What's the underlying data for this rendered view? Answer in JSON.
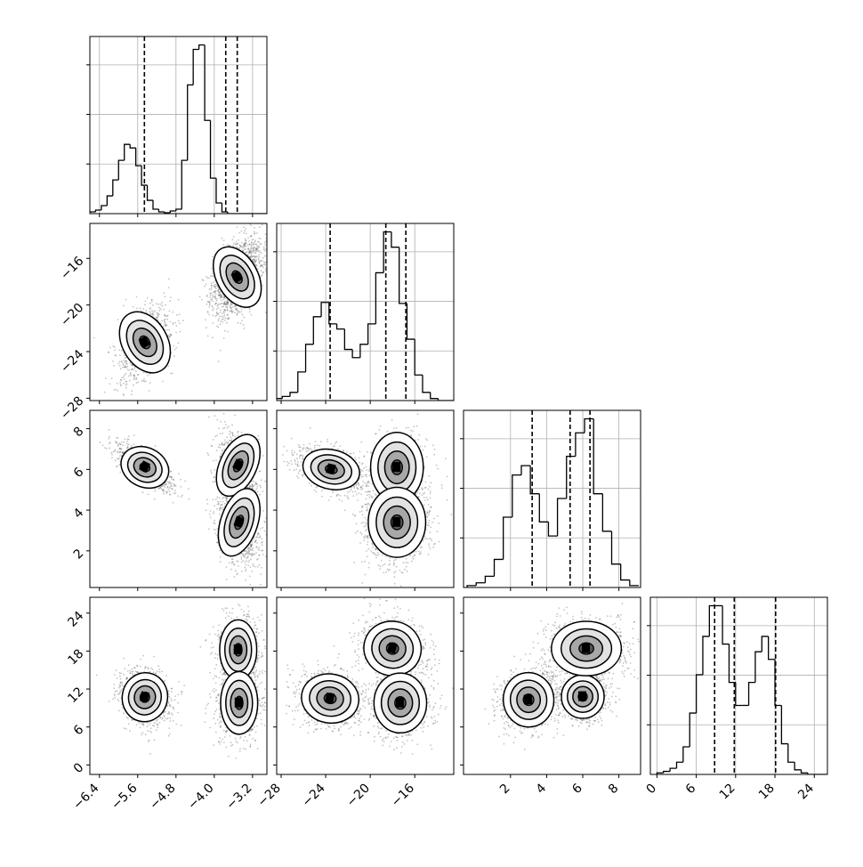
{
  "figure": {
    "kind": "corner-plot",
    "parameters": 4
  },
  "colors": {
    "hist_line": "#000000",
    "grid": "#b0b0b0",
    "scatter": "#555555",
    "contour": "#000000",
    "quantile_line": "#000000",
    "background": "#ffffff"
  },
  "chart_data": [
    {
      "type": "histogram",
      "panel": "0-0",
      "param": 0,
      "bins": [
        -6.6,
        -6.48,
        -6.36,
        -6.24,
        -6.12,
        -6.0,
        -5.88,
        -5.76,
        -5.64,
        -5.52,
        -5.4,
        -5.28,
        -5.16,
        -5.04,
        -4.92,
        -4.8,
        -4.68,
        -4.56,
        -4.44,
        -4.32,
        -4.2,
        -4.08,
        -3.96,
        -3.84,
        -3.72,
        -3.6,
        -3.48,
        -3.36,
        -3.24,
        -3.12,
        -3.0,
        -2.88
      ],
      "counts": [
        2,
        4,
        9,
        20,
        38,
        60,
        78,
        74,
        54,
        32,
        15,
        5,
        2,
        1,
        3,
        5,
        60,
        145,
        185,
        190,
        105,
        40,
        12,
        2,
        0,
        0,
        0,
        0,
        0,
        0,
        0
      ],
      "quantiles": [
        -5.46,
        -3.76,
        -3.52
      ],
      "xlim": [
        -6.6,
        -2.9
      ],
      "grid": true
    },
    {
      "type": "histogram",
      "panel": "1-1",
      "param": 1,
      "bins": [
        -28.6,
        -27.9,
        -27.2,
        -26.5,
        -25.8,
        -25.1,
        -24.4,
        -23.7,
        -23.0,
        -22.3,
        -21.6,
        -20.9,
        -20.2,
        -19.5,
        -18.8,
        -18.1,
        -17.4,
        -16.7,
        -16.0,
        -15.3,
        -14.6,
        -13.9,
        -13.2,
        -12.5,
        -11.8
      ],
      "counts": [
        2,
        4,
        8,
        28,
        55,
        82,
        96,
        75,
        70,
        50,
        42,
        55,
        75,
        125,
        165,
        150,
        95,
        60,
        25,
        8,
        2,
        0,
        0,
        0
      ],
      "quantiles": [
        -23.6,
        -18.6,
        -16.8
      ],
      "xlim": [
        -28.4,
        -12.5
      ],
      "grid": true
    },
    {
      "type": "histogram",
      "panel": "2-2",
      "param": 2,
      "bins": [
        -0.4,
        0.1,
        0.6,
        1.1,
        1.6,
        2.1,
        2.6,
        3.1,
        3.6,
        4.1,
        4.6,
        5.1,
        5.6,
        6.1,
        6.6,
        7.1,
        7.6,
        8.1,
        8.6,
        9.1
      ],
      "counts": [
        2,
        5,
        12,
        30,
        75,
        120,
        130,
        100,
        70,
        55,
        95,
        140,
        165,
        180,
        100,
        60,
        25,
        8,
        2
      ],
      "quantiles": [
        3.2,
        5.3,
        6.4
      ],
      "xlim": [
        -0.6,
        9.2
      ],
      "grid": true
    },
    {
      "type": "histogram",
      "panel": "3-3",
      "param": 3,
      "bins": [
        0,
        1,
        2,
        3,
        4,
        5,
        6,
        7,
        8,
        9,
        10,
        11,
        12,
        13,
        14,
        15,
        16,
        17,
        18,
        19,
        20,
        21,
        22,
        23,
        24,
        25,
        26
      ],
      "counts": [
        1,
        2,
        4,
        8,
        18,
        40,
        65,
        90,
        110,
        110,
        85,
        60,
        45,
        45,
        60,
        80,
        90,
        75,
        45,
        20,
        8,
        3,
        1,
        0,
        0,
        0
      ],
      "quantiles": [
        8.8,
        11.8,
        18.1
      ],
      "xlim": [
        -1.0,
        26.0
      ],
      "grid": true
    },
    {
      "type": "heatmap",
      "panel": "1-0",
      "x_param": 0,
      "y_param": 1,
      "xlim": [
        -6.6,
        -2.9
      ],
      "ylim": [
        -28.2,
        -13.0
      ],
      "modes": [
        {
          "x": -5.45,
          "y": -23.2,
          "sx": 0.22,
          "sy": 1.3,
          "rho": 0.45,
          "w": 0.35
        },
        {
          "x": -3.52,
          "y": -17.6,
          "sx": 0.2,
          "sy": 1.3,
          "rho": 0.4,
          "w": 0.65
        }
      ]
    },
    {
      "type": "heatmap",
      "panel": "2-0",
      "x_param": 0,
      "y_param": 2,
      "xlim": [
        -6.6,
        -2.9
      ],
      "ylim": [
        0.2,
        8.9
      ],
      "modes": [
        {
          "x": -5.45,
          "y": 6.1,
          "sx": 0.24,
          "sy": 0.45,
          "rho": -0.7,
          "w": 0.35
        },
        {
          "x": -3.5,
          "y": 6.2,
          "sx": 0.18,
          "sy": 0.75,
          "rho": -0.3,
          "w": 0.2
        },
        {
          "x": -3.48,
          "y": 3.4,
          "sx": 0.18,
          "sy": 0.8,
          "rho": -0.2,
          "w": 0.45
        }
      ]
    },
    {
      "type": "heatmap",
      "panel": "2-1",
      "x_param": 1,
      "y_param": 2,
      "xlim": [
        -28.4,
        -12.5
      ],
      "ylim": [
        0.2,
        8.9
      ],
      "modes": [
        {
          "x": -23.5,
          "y": 6.0,
          "sx": 1.2,
          "sy": 0.45,
          "rho": -0.4,
          "w": 0.35
        },
        {
          "x": -17.6,
          "y": 6.1,
          "sx": 1.1,
          "sy": 0.8,
          "rho": 0.0,
          "w": 0.2
        },
        {
          "x": -17.6,
          "y": 3.4,
          "sx": 1.2,
          "sy": 0.8,
          "rho": 0.0,
          "w": 0.45
        }
      ]
    },
    {
      "type": "heatmap",
      "panel": "3-0",
      "x_param": 0,
      "y_param": 3,
      "xlim": [
        -6.6,
        -2.9
      ],
      "ylim": [
        -1.5,
        26.5
      ],
      "modes": [
        {
          "x": -5.45,
          "y": 10.7,
          "sx": 0.22,
          "sy": 1.8,
          "rho": -0.2,
          "w": 0.35
        },
        {
          "x": -3.5,
          "y": 18.2,
          "sx": 0.18,
          "sy": 2.2,
          "rho": 0.0,
          "w": 0.3
        },
        {
          "x": -3.48,
          "y": 9.8,
          "sx": 0.18,
          "sy": 2.3,
          "rho": 0.0,
          "w": 0.35
        }
      ]
    },
    {
      "type": "heatmap",
      "panel": "3-1",
      "x_param": 1,
      "y_param": 3,
      "xlim": [
        -28.4,
        -12.5
      ],
      "ylim": [
        -1.5,
        26.5
      ],
      "modes": [
        {
          "x": -23.6,
          "y": 10.5,
          "sx": 1.2,
          "sy": 1.8,
          "rho": -0.2,
          "w": 0.35
        },
        {
          "x": -18.0,
          "y": 18.4,
          "sx": 1.2,
          "sy": 2.0,
          "rho": -0.3,
          "w": 0.3
        },
        {
          "x": -17.3,
          "y": 9.8,
          "sx": 1.1,
          "sy": 2.2,
          "rho": 0.0,
          "w": 0.35
        }
      ]
    },
    {
      "type": "heatmap",
      "panel": "3-2",
      "x_param": 2,
      "y_param": 3,
      "xlim": [
        -0.6,
        9.2
      ],
      "ylim": [
        -1.5,
        26.5
      ],
      "modes": [
        {
          "x": 3.0,
          "y": 10.3,
          "sx": 0.65,
          "sy": 2.0,
          "rho": 0.1,
          "w": 0.35
        },
        {
          "x": 6.0,
          "y": 10.8,
          "sx": 0.55,
          "sy": 1.6,
          "rho": 0.0,
          "w": 0.35
        },
        {
          "x": 6.2,
          "y": 18.4,
          "sx": 0.9,
          "sy": 2.0,
          "rho": 0.0,
          "w": 0.3
        }
      ]
    }
  ],
  "ticks": {
    "p0": {
      "values": [
        -6.4,
        -5.6,
        -4.8,
        -4.0,
        -3.2
      ],
      "labels": [
        "−6.4",
        "−5.6",
        "−4.8",
        "−4.0",
        "−3.2"
      ]
    },
    "p1": {
      "values": [
        -28,
        -24,
        -20,
        -16
      ],
      "labels": [
        "−28",
        "−24",
        "−20",
        "−16"
      ]
    },
    "p2": {
      "values": [
        2,
        4,
        6,
        8
      ],
      "labels": [
        "2",
        "4",
        "6",
        "8"
      ]
    },
    "p3": {
      "values": [
        0,
        6,
        12,
        18,
        24
      ],
      "labels": [
        "0",
        "6",
        "12",
        "18",
        "24"
      ]
    }
  }
}
